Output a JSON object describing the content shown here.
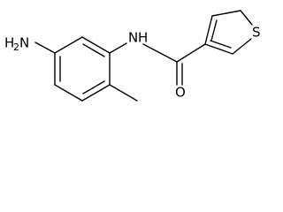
{
  "atoms": {
    "amine_h": "H",
    "amine_sub": "2",
    "amine_n": "N",
    "amide_n": "N",
    "amide_h": "H",
    "oxygen": "O",
    "sulfur": "S"
  }
}
